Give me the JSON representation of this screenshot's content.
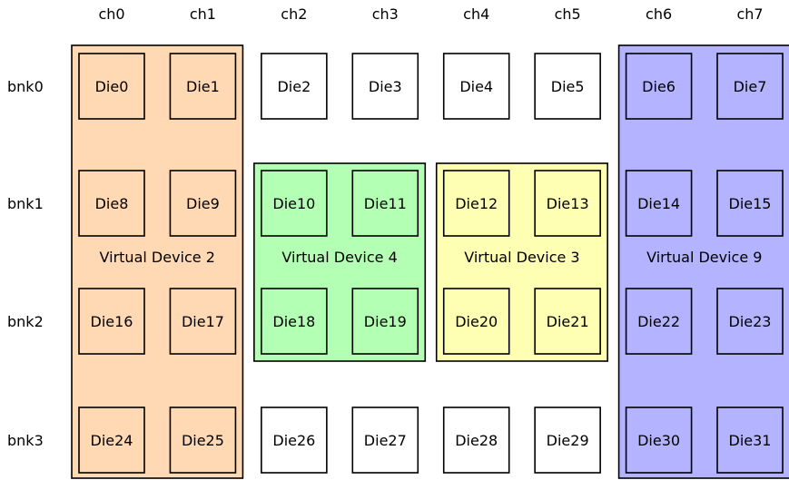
{
  "channels": [
    "ch0",
    "ch1",
    "ch2",
    "ch3",
    "ch4",
    "ch5",
    "ch6",
    "ch7"
  ],
  "banks": [
    "bnk0",
    "bnk1",
    "bnk2",
    "bnk3"
  ],
  "dies": [
    [
      "Die0",
      "Die1",
      "Die2",
      "Die3",
      "Die4",
      "Die5",
      "Die6",
      "Die7"
    ],
    [
      "Die8",
      "Die9",
      "Die10",
      "Die11",
      "Die12",
      "Die13",
      "Die14",
      "Die15"
    ],
    [
      "Die16",
      "Die17",
      "Die18",
      "Die19",
      "Die20",
      "Die21",
      "Die22",
      "Die23"
    ],
    [
      "Die24",
      "Die25",
      "Die26",
      "Die27",
      "Die28",
      "Die29",
      "Die30",
      "Die31"
    ]
  ],
  "virtual_devices": [
    {
      "label": "Virtual Device 2",
      "color": "#FFD9B3",
      "channels": [
        0,
        1
      ],
      "banks": [
        0,
        1,
        2,
        3
      ]
    },
    {
      "label": "Virtual Device 4",
      "color": "#B3FFB3",
      "channels": [
        2,
        3
      ],
      "banks": [
        1,
        2
      ]
    },
    {
      "label": "Virtual Device 3",
      "color": "#FFFFB3",
      "channels": [
        4,
        5
      ],
      "banks": [
        1,
        2
      ]
    },
    {
      "label": "Virtual Device 9",
      "color": "#B3B3FF",
      "channels": [
        6,
        7
      ],
      "banks": [
        0,
        1,
        2,
        3
      ]
    }
  ]
}
